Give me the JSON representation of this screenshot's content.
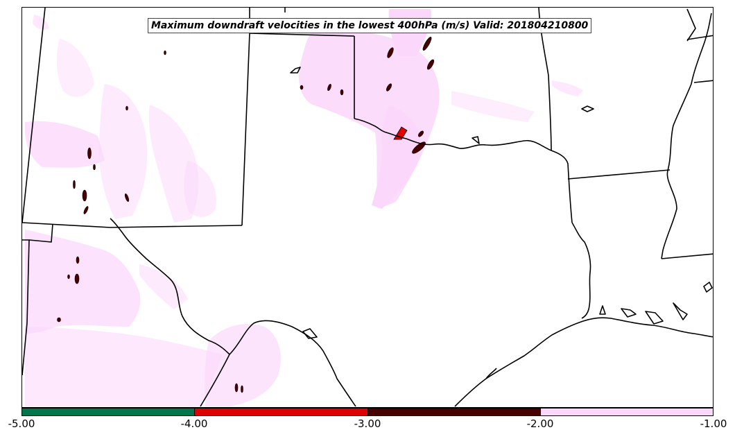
{
  "title": "Maximum downdraft velocities in the lowest 400hPa (m/s) Valid: 201804210800",
  "colorbar": {
    "ticks": [
      "-5.00",
      "-4.00",
      "-3.00",
      "-2.00",
      "-1.00"
    ],
    "bins": [
      {
        "range": "-5.00 to -4.00",
        "color": "#00774a"
      },
      {
        "range": "-4.00 to -3.00",
        "color": "#e00000"
      },
      {
        "range": "-3.00 to -2.00",
        "color": "#480000"
      },
      {
        "range": "-2.00 to -1.00",
        "color": "#fbd8fb"
      }
    ]
  }
}
